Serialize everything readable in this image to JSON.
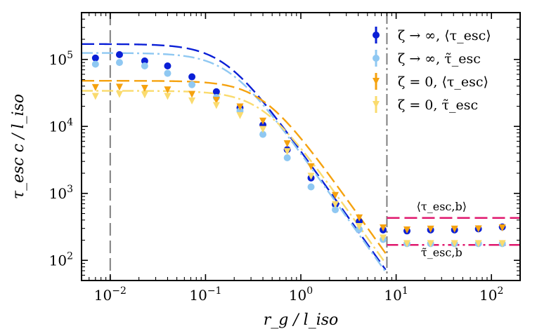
{
  "chart_data": {
    "type": "scatter",
    "title": "",
    "xlabel": "r_g / l_iso",
    "ylabel": "τ_esc c / l_iso",
    "xscale": "log",
    "yscale": "log",
    "xlim": [
      0.005,
      200
    ],
    "ylim": [
      50,
      500000
    ],
    "x_ticks": [
      {
        "value": 0.01,
        "label": "10",
        "exp": "−2"
      },
      {
        "value": 0.1,
        "label": "10",
        "exp": "−1"
      },
      {
        "value": 1,
        "label": "10",
        "exp": "0"
      },
      {
        "value": 10,
        "label": "10",
        "exp": "1"
      },
      {
        "value": 100,
        "label": "10",
        "exp": "2"
      }
    ],
    "y_ticks": [
      {
        "value": 100,
        "label": "10",
        "exp": "2"
      },
      {
        "value": 1000,
        "label": "10",
        "exp": "3"
      },
      {
        "value": 10000,
        "label": "10",
        "exp": "4"
      },
      {
        "value": 100000,
        "label": "10",
        "exp": "5"
      }
    ],
    "vertical_lines": [
      {
        "x": 0.01,
        "style": "dashed",
        "color": "#7f7f7f"
      },
      {
        "x": 8,
        "style": "dashdot",
        "color": "#7f7f7f"
      }
    ],
    "series": [
      {
        "name": "ζ → ∞, ⟨τ_esc⟩",
        "marker": "circle",
        "color": "#0a1fd6",
        "x": [
          0.007,
          0.0125,
          0.023,
          0.04,
          0.072,
          0.13,
          0.23,
          0.4,
          0.72,
          1.28,
          2.3,
          4.1,
          7.3,
          13,
          23,
          41,
          73,
          130
        ],
        "y": [
          105000,
          118000,
          95000,
          80000,
          55000,
          33000,
          19000,
          10500,
          4500,
          1700,
          680,
          380,
          285,
          275,
          285,
          285,
          295,
          315
        ]
      },
      {
        "name": "ζ → ∞, τ̃_esc",
        "marker": "circle",
        "color": "#8fc8f2",
        "x": [
          0.007,
          0.0125,
          0.023,
          0.04,
          0.072,
          0.13,
          0.23,
          0.4,
          0.72,
          1.28,
          2.3,
          4.1,
          7.3,
          13,
          23,
          41,
          73,
          130
        ],
        "y": [
          85000,
          90000,
          80000,
          62000,
          42000,
          27000,
          17000,
          7600,
          3400,
          1250,
          570,
          290,
          205,
          178,
          178,
          178,
          178,
          178
        ]
      },
      {
        "name": "ζ = 0, ⟨τ_esc⟩",
        "marker": "triangle-down",
        "color": "#f5a20f",
        "x": [
          0.007,
          0.0125,
          0.023,
          0.04,
          0.072,
          0.13,
          0.23,
          0.4,
          0.72,
          1.28,
          2.3,
          4.1,
          7.3,
          13,
          23,
          41,
          73,
          130
        ],
        "y": [
          38000,
          38500,
          37000,
          35000,
          30000,
          24500,
          19500,
          12000,
          5500,
          2500,
          930,
          430,
          305,
          285,
          292,
          292,
          295,
          305
        ]
      },
      {
        "name": "ζ = 0, τ̃_esc",
        "marker": "triangle-down",
        "color": "#fadb6e",
        "x": [
          0.007,
          0.0125,
          0.023,
          0.04,
          0.072,
          0.13,
          0.23,
          0.4,
          0.72,
          1.28,
          2.3,
          4.1,
          7.3,
          13,
          23,
          41,
          73,
          130
        ],
        "y": [
          28000,
          30000,
          29500,
          28000,
          24000,
          20500,
          14500,
          9000,
          4200,
          1800,
          680,
          320,
          215,
          178,
          178,
          178,
          178,
          178
        ]
      }
    ],
    "fit_curves": [
      {
        "series": "ζ → ∞, ⟨τ_esc⟩",
        "style": "dashed",
        "color": "#0a1fd6",
        "amplitude": 170000,
        "scale": 0.16,
        "power": 2.0
      },
      {
        "series": "ζ → ∞, τ̃_esc",
        "style": "dashdot",
        "color": "#8fc8f2",
        "amplitude": 125000,
        "scale": 0.18,
        "power": 2.0
      },
      {
        "series": "ζ = 0, ⟨τ_esc⟩",
        "style": "dashed",
        "color": "#f5a20f",
        "amplitude": 48000,
        "scale": 0.4,
        "power": 2.0
      },
      {
        "series": "ζ = 0, τ̃_esc",
        "style": "dashdot",
        "color": "#fadb6e",
        "amplitude": 34000,
        "scale": 0.4,
        "power": 2.0
      }
    ],
    "horizontal_lines": [
      {
        "name": "⟨τ_esc,b⟩",
        "y": 430,
        "x_start": 8,
        "style": "dashed",
        "color": "#e0176d"
      },
      {
        "name": "τ̃_esc,b",
        "y": 170,
        "x_start": 8,
        "style": "dashdot",
        "color": "#e0176d"
      }
    ],
    "annotations": [
      {
        "text": "⟨τ_esc,b⟩",
        "x": 30,
        "y": 560
      },
      {
        "text": "τ̃_esc,b",
        "x": 30,
        "y": 115
      }
    ],
    "legend_location": "top-right"
  }
}
